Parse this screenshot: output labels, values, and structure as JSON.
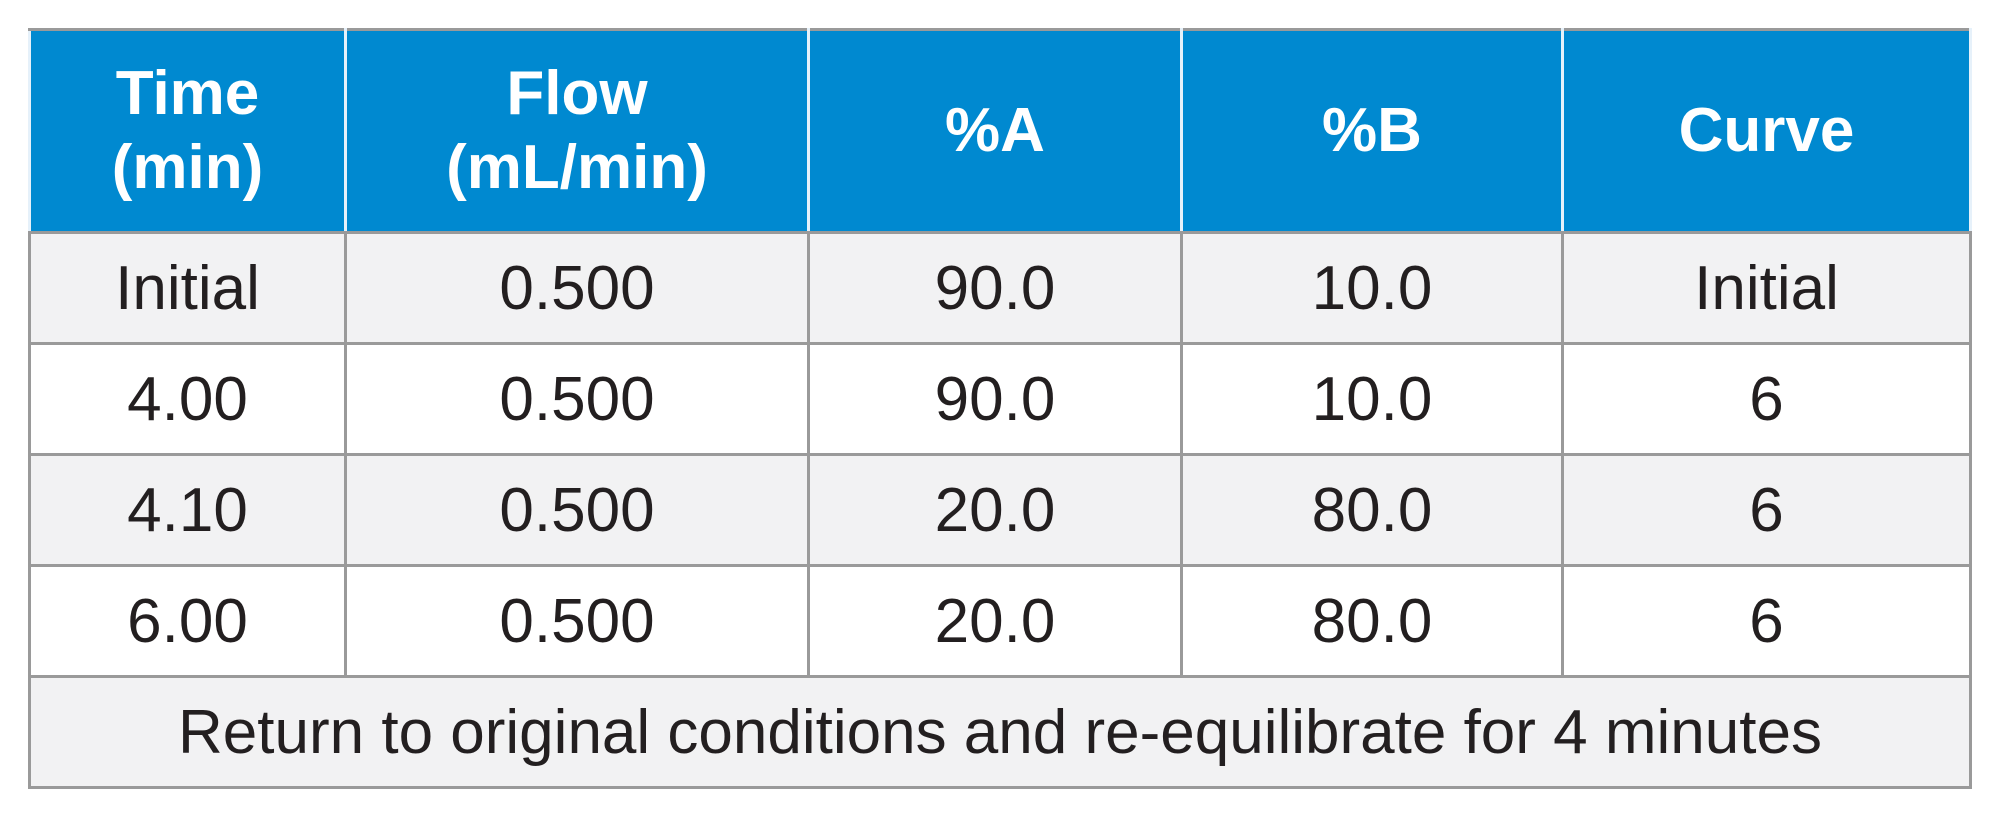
{
  "table": {
    "header": [
      [
        "Time",
        "(min)"
      ],
      [
        "Flow",
        "(mL/min)"
      ],
      [
        "%A"
      ],
      [
        "%B"
      ],
      [
        "Curve"
      ]
    ],
    "rows": [
      [
        "Initial",
        "0.500",
        "90.0",
        "10.0",
        "Initial"
      ],
      [
        "4.00",
        "0.500",
        "90.0",
        "10.0",
        "6"
      ],
      [
        "4.10",
        "0.500",
        "20.0",
        "80.0",
        "6"
      ],
      [
        "6.00",
        "0.500",
        "20.0",
        "80.0",
        "6"
      ]
    ],
    "footer": "Return to original conditions and re-equilibrate for 4 minutes"
  }
}
